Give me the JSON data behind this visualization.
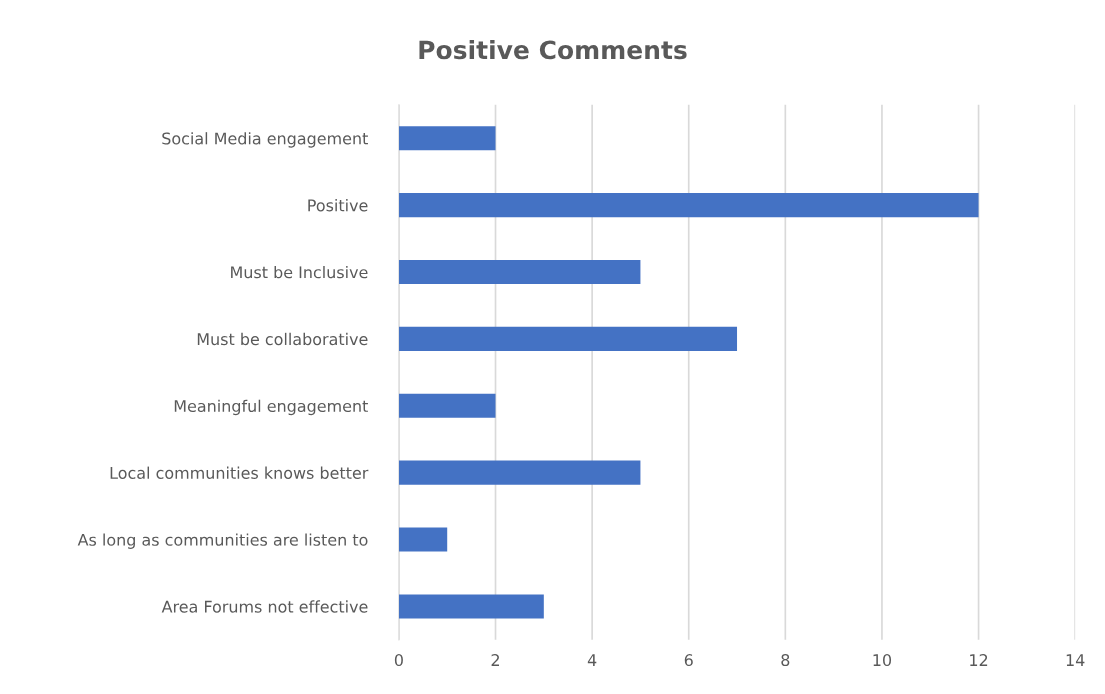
{
  "chart_data": {
    "type": "bar",
    "orientation": "horizontal",
    "title": "Positive Comments",
    "categories": [
      "Social Media engagement",
      "Positive",
      "Must be Inclusive",
      "Must be collaborative",
      "Meaningful engagement",
      "Local communities knows better",
      "As long as communities are listen to",
      "Area Forums not effective"
    ],
    "values": [
      2,
      12,
      5,
      7,
      2,
      5,
      1,
      3
    ],
    "color": "#4472c4",
    "xlim": [
      0,
      14
    ],
    "xticks": [
      0,
      2,
      4,
      6,
      8,
      10,
      12,
      14
    ],
    "grid": "x",
    "legend": false
  }
}
